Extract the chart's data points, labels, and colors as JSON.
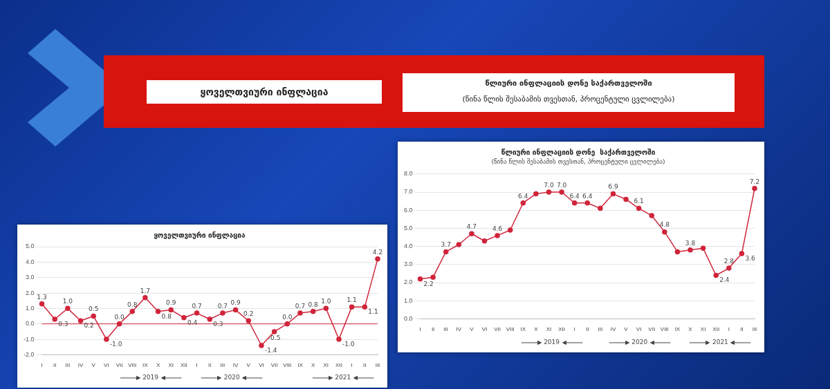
{
  "chart_data": [
    {
      "type": "line",
      "title": "ყოველთვიური ინფლაცია",
      "categories": [
        "I",
        "II",
        "III",
        "IV",
        "V",
        "VI",
        "VII",
        "VIII",
        "IX",
        "X",
        "XI",
        "XII",
        "I",
        "II",
        "III",
        "IV",
        "V",
        "VI",
        "VII",
        "VIII",
        "IX",
        "X",
        "XI",
        "XII",
        "I",
        "II",
        "III"
      ],
      "values": [
        1.3,
        0.3,
        1.0,
        0.2,
        0.5,
        -1.0,
        0.0,
        0.8,
        1.7,
        0.8,
        0.9,
        0.4,
        0.7,
        0.3,
        0.7,
        0.9,
        0.2,
        -1.4,
        -0.5,
        0.0,
        0.7,
        0.8,
        1.0,
        -1.0,
        1.1,
        1.1,
        4.2
      ],
      "value_labels": [
        "1.3",
        "0.3",
        "1.0",
        "0.2",
        "0.5",
        "-1.0",
        "0.0",
        "0.8",
        "1.7",
        "0.8",
        "0.9",
        "0.4",
        "0.7",
        "0.3",
        "0.7",
        "0.9",
        "0.2",
        "-1.4",
        "-0.5",
        "0.0",
        "0.7",
        "0.8",
        "1.0",
        "-1.0",
        "1.1",
        "1.1",
        "4.2"
      ],
      "ref_lines": [
        {
          "axis": "y",
          "value": 0,
          "color": "#d0243a"
        }
      ],
      "color": "#d0243a",
      "marker": "circle",
      "grid": "y",
      "legend": false,
      "ylim": [
        -2,
        5
      ],
      "yticks": [
        {
          "value": -2,
          "label": "-2.0"
        },
        {
          "value": -1,
          "label": "-1.0"
        },
        {
          "value": 0,
          "label": "0.0"
        },
        {
          "value": 1,
          "label": "1.0"
        },
        {
          "value": 2,
          "label": "2.0"
        },
        {
          "value": 3,
          "label": "3.0"
        },
        {
          "value": 4,
          "label": "4.0"
        },
        {
          "value": 5,
          "label": "5.0"
        }
      ],
      "annotations": [
        "2019",
        "2020",
        "2021"
      ]
    },
    {
      "type": "line",
      "title": "წლიური ინფლაციის დონე  საქართველოში",
      "subtitle": "(წინა წლის შესაბამის თვესთან, პროცენტული ცვლილება)",
      "categories": [
        "I",
        "II",
        "III",
        "IV",
        "V",
        "VI",
        "VII",
        "VIII",
        "IX",
        "X",
        "XI",
        "XII",
        "I",
        "II",
        "III",
        "IV",
        "V",
        "VI",
        "VII",
        "VIII",
        "IX",
        "X",
        "XI",
        "XII",
        "I",
        "II",
        "III"
      ],
      "values": [
        2.2,
        2.3,
        3.7,
        4.1,
        4.7,
        4.3,
        4.6,
        4.9,
        6.4,
        6.9,
        7.0,
        7.0,
        6.4,
        6.4,
        6.1,
        6.9,
        6.6,
        6.1,
        5.7,
        4.8,
        3.7,
        3.8,
        3.9,
        2.4,
        2.8,
        3.6,
        7.2
      ],
      "value_labels": [
        "2.2",
        null,
        "3.7",
        null,
        "4.7",
        null,
        "4.6",
        null,
        "6.4",
        null,
        "7.0",
        "7.0",
        "6.4",
        "6.4",
        null,
        "6.9",
        null,
        "6.1",
        null,
        "4.8",
        null,
        "3.8",
        null,
        "2.4",
        "2.8",
        "3.6",
        "7.2"
      ],
      "color": "#d0243a",
      "marker": "circle",
      "grid": "y",
      "legend": false,
      "ylim": [
        0,
        8
      ],
      "yticks": [
        {
          "value": 0,
          "label": "0.0"
        },
        {
          "value": 1,
          "label": "1.0"
        },
        {
          "value": 2,
          "label": "2.0"
        },
        {
          "value": 3,
          "label": "3.0"
        },
        {
          "value": 4,
          "label": "4.0"
        },
        {
          "value": 5,
          "label": "5.0"
        },
        {
          "value": 6,
          "label": "6.0"
        },
        {
          "value": 7,
          "label": "7.0"
        },
        {
          "value": 8,
          "label": "8.0"
        }
      ],
      "annotations": [
        "2019",
        "2020",
        "2021"
      ]
    }
  ]
}
